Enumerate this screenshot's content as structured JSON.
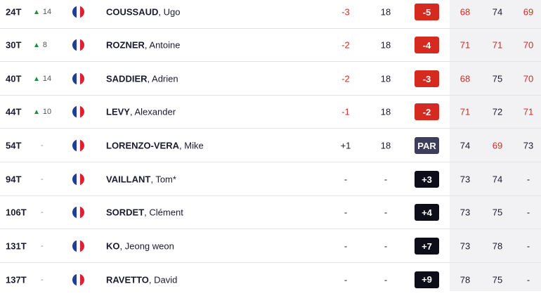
{
  "colors": {
    "under_par": "#d42a1f",
    "even_par": "#3d3d5c",
    "over_par": "#0e0e1a",
    "movement_up": "#1a8f3c",
    "flag_blue": "#1f3f97",
    "flag_white": "#ffffff",
    "flag_red": "#e2202d"
  },
  "rows": [
    {
      "pos": "24T",
      "move": "14",
      "move_dir": "up",
      "flag_icon": "france-flag-icon",
      "last": "COUSSAUD",
      "first": "Ugo",
      "total": "-3",
      "thru": "18",
      "score": "-5",
      "r1": "68",
      "r2": "74",
      "r3": "69"
    },
    {
      "pos": "30T",
      "move": "8",
      "move_dir": "up",
      "flag_icon": "france-flag-icon",
      "last": "ROZNER",
      "first": "Antoine",
      "total": "-2",
      "thru": "18",
      "score": "-4",
      "r1": "71",
      "r2": "71",
      "r3": "70"
    },
    {
      "pos": "40T",
      "move": "14",
      "move_dir": "up",
      "flag_icon": "france-flag-icon",
      "last": "SADDIER",
      "first": "Adrien",
      "total": "-2",
      "thru": "18",
      "score": "-3",
      "r1": "68",
      "r2": "75",
      "r3": "70"
    },
    {
      "pos": "44T",
      "move": "10",
      "move_dir": "up",
      "flag_icon": "france-flag-icon",
      "last": "LEVY",
      "first": "Alexander",
      "total": "-1",
      "thru": "18",
      "score": "-2",
      "r1": "71",
      "r2": "72",
      "r3": "71"
    },
    {
      "pos": "54T",
      "move": "-",
      "move_dir": "none",
      "flag_icon": "france-flag-icon",
      "last": "LORENZO-VERA",
      "first": "Mike",
      "total": "+1",
      "thru": "18",
      "score": "PAR",
      "r1": "74",
      "r2": "69",
      "r3": "73"
    },
    {
      "pos": "94T",
      "move": "-",
      "move_dir": "none",
      "flag_icon": "france-flag-icon",
      "last": "VAILLANT",
      "first": "Tom*",
      "total": "-",
      "thru": "-",
      "score": "+3",
      "r1": "73",
      "r2": "74",
      "r3": "-"
    },
    {
      "pos": "106T",
      "move": "-",
      "move_dir": "none",
      "flag_icon": "france-flag-icon",
      "last": "SORDET",
      "first": "Clément",
      "total": "-",
      "thru": "-",
      "score": "+4",
      "r1": "73",
      "r2": "75",
      "r3": "-"
    },
    {
      "pos": "131T",
      "move": "-",
      "move_dir": "none",
      "flag_icon": "france-flag-icon",
      "last": "KO",
      "first": "Jeong weon",
      "total": "-",
      "thru": "-",
      "score": "+7",
      "r1": "73",
      "r2": "78",
      "r3": "-"
    },
    {
      "pos": "137T",
      "move": "-",
      "move_dir": "none",
      "flag_icon": "france-flag-icon",
      "last": "RAVETTO",
      "first": "David",
      "total": "-",
      "thru": "-",
      "score": "+9",
      "r1": "78",
      "r2": "75",
      "r3": "-"
    }
  ]
}
